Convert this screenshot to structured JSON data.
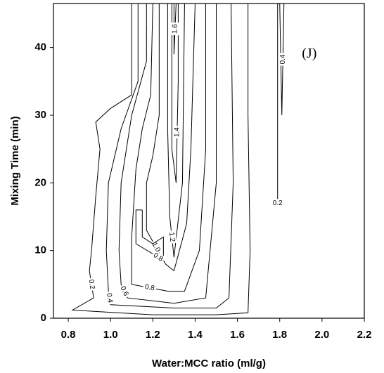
{
  "chart_data": {
    "type": "contour",
    "annotation": "(J)",
    "annotation_x": 1.94,
    "annotation_y": 39,
    "xlabel": "Water:MCC ratio (ml/g)",
    "ylabel": "Mixing Time (min)",
    "xlim": [
      0.73,
      2.2
    ],
    "ylim": [
      0,
      46.5
    ],
    "xticks": [
      0.8,
      {
        "value": 1,
        "label": "1.0"
      },
      1.2,
      1.4,
      1.6,
      1.8,
      {
        "value": 2,
        "label": "2.0"
      },
      2.2
    ],
    "yticks": [
      0,
      10,
      20,
      30,
      40
    ],
    "color": "#000000",
    "contours": [
      {
        "level": 0.2,
        "x": [
          1.1,
          1.1,
          1.0,
          0.93,
          0.95,
          0.93,
          0.91,
          0.9,
          0.92,
          0.82,
          1.2,
          1.5,
          1.65,
          1.66,
          1.65,
          1.65
        ],
        "y": [
          46.5,
          33,
          31,
          29,
          25,
          18,
          10,
          7,
          3,
          1.2,
          0.5,
          0.5,
          0.8,
          10,
          30,
          46.5
        ]
      },
      {
        "level": 0.4,
        "x": [
          1.13,
          1.13,
          1.05,
          0.99,
          0.98,
          0.99,
          1.0,
          1.3,
          1.5,
          1.56,
          1.58,
          1.57
        ],
        "y": [
          46.5,
          35,
          28,
          20,
          10,
          4,
          2,
          1.5,
          1.5,
          3,
          20,
          46.5
        ]
      },
      {
        "level": 0.6,
        "x": [
          1.17,
          1.17,
          1.1,
          1.05,
          1.04,
          1.05,
          1.08,
          1.3,
          1.45,
          1.5,
          1.5
        ],
        "y": [
          46.5,
          38,
          30,
          20,
          10,
          5,
          3,
          2.2,
          3,
          20,
          46.5
        ]
      },
      {
        "level": 0.8,
        "x": [
          1.2,
          1.19,
          1.15,
          1.12,
          1.1,
          1.1,
          1.27,
          1.35,
          1.42,
          1.45,
          1.45
        ],
        "y": [
          46.5,
          33,
          28,
          22,
          12,
          5,
          4,
          4,
          10,
          25,
          46.5
        ]
      },
      {
        "level": 1,
        "label": "1.0",
        "x": [
          1.23,
          1.23,
          1.2,
          1.17,
          1.17,
          1.26,
          1.3,
          1.36,
          1.38,
          1.4
        ],
        "y": [
          46.5,
          30,
          24,
          20,
          13,
          8,
          7,
          14,
          25,
          46.5
        ]
      },
      {
        "level": 1.2,
        "x": [
          1.27,
          1.27,
          1.28,
          1.3,
          1.34,
          1.35
        ],
        "y": [
          46.5,
          28,
          15,
          9,
          20,
          46.5
        ]
      },
      {
        "level": 1.4,
        "x": [
          1.29,
          1.29,
          1.31,
          1.32,
          1.32
        ],
        "y": [
          46.5,
          25,
          20,
          35,
          46.5
        ]
      },
      {
        "level": 1.6,
        "x": [
          1.3,
          1.3,
          1.31
        ],
        "y": [
          46.5,
          39,
          46.5
        ]
      },
      {
        "level": 0.8,
        "x": [
          1.15,
          1.15,
          1.2,
          1.25,
          1.25,
          1.2,
          1.12,
          1.12,
          1.15
        ],
        "y": [
          16,
          12,
          11,
          12,
          8.5,
          9.5,
          11,
          16,
          16
        ]
      },
      {
        "level": 0.2,
        "x": [
          1.79,
          1.79,
          1.79
        ],
        "y": [
          46.5,
          17,
          17
        ]
      },
      {
        "level": 0.4,
        "x": [
          1.8,
          1.81,
          1.82
        ],
        "y": [
          46.5,
          30,
          46.5
        ]
      }
    ]
  }
}
